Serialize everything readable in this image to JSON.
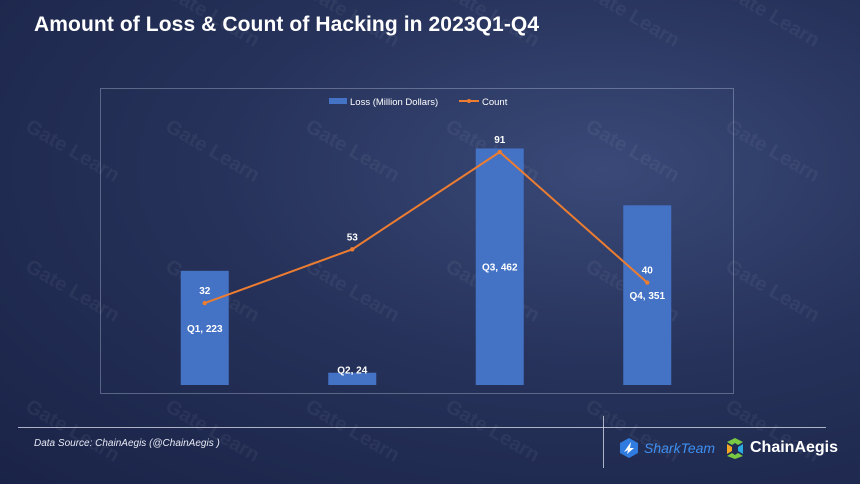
{
  "title": "Amount of Loss & Count of Hacking in 2023Q1-Q4",
  "source": "Data Source: ChainAegis (@ChainAegis )",
  "watermark": "Gate Learn",
  "logos": {
    "sharkteam": "SharkTeam",
    "chainaegis": "ChainAegis"
  },
  "colors": {
    "bar": "#4472c4",
    "line": "#ed7d31",
    "text": "#ffffff"
  },
  "chart_data": {
    "type": "bar",
    "categories": [
      "Q1",
      "Q2",
      "Q3",
      "Q4"
    ],
    "legend": [
      "Loss (Million Dollars)",
      "Count"
    ],
    "series": [
      {
        "name": "Loss (Million Dollars)",
        "type": "bar",
        "values": [
          223,
          24,
          462,
          351
        ],
        "data_labels": [
          "Q1, 223",
          "Q2, 24",
          "Q3, 462",
          "Q4, 351"
        ]
      },
      {
        "name": "Count",
        "type": "line",
        "values": [
          32,
          53,
          91,
          40
        ],
        "data_labels": [
          "32",
          "53",
          "91",
          "40"
        ]
      }
    ],
    "ylim_loss": [
      0,
      500
    ],
    "ylim_count": [
      0,
      100
    ],
    "legend_position": "top-center",
    "grid": false
  }
}
